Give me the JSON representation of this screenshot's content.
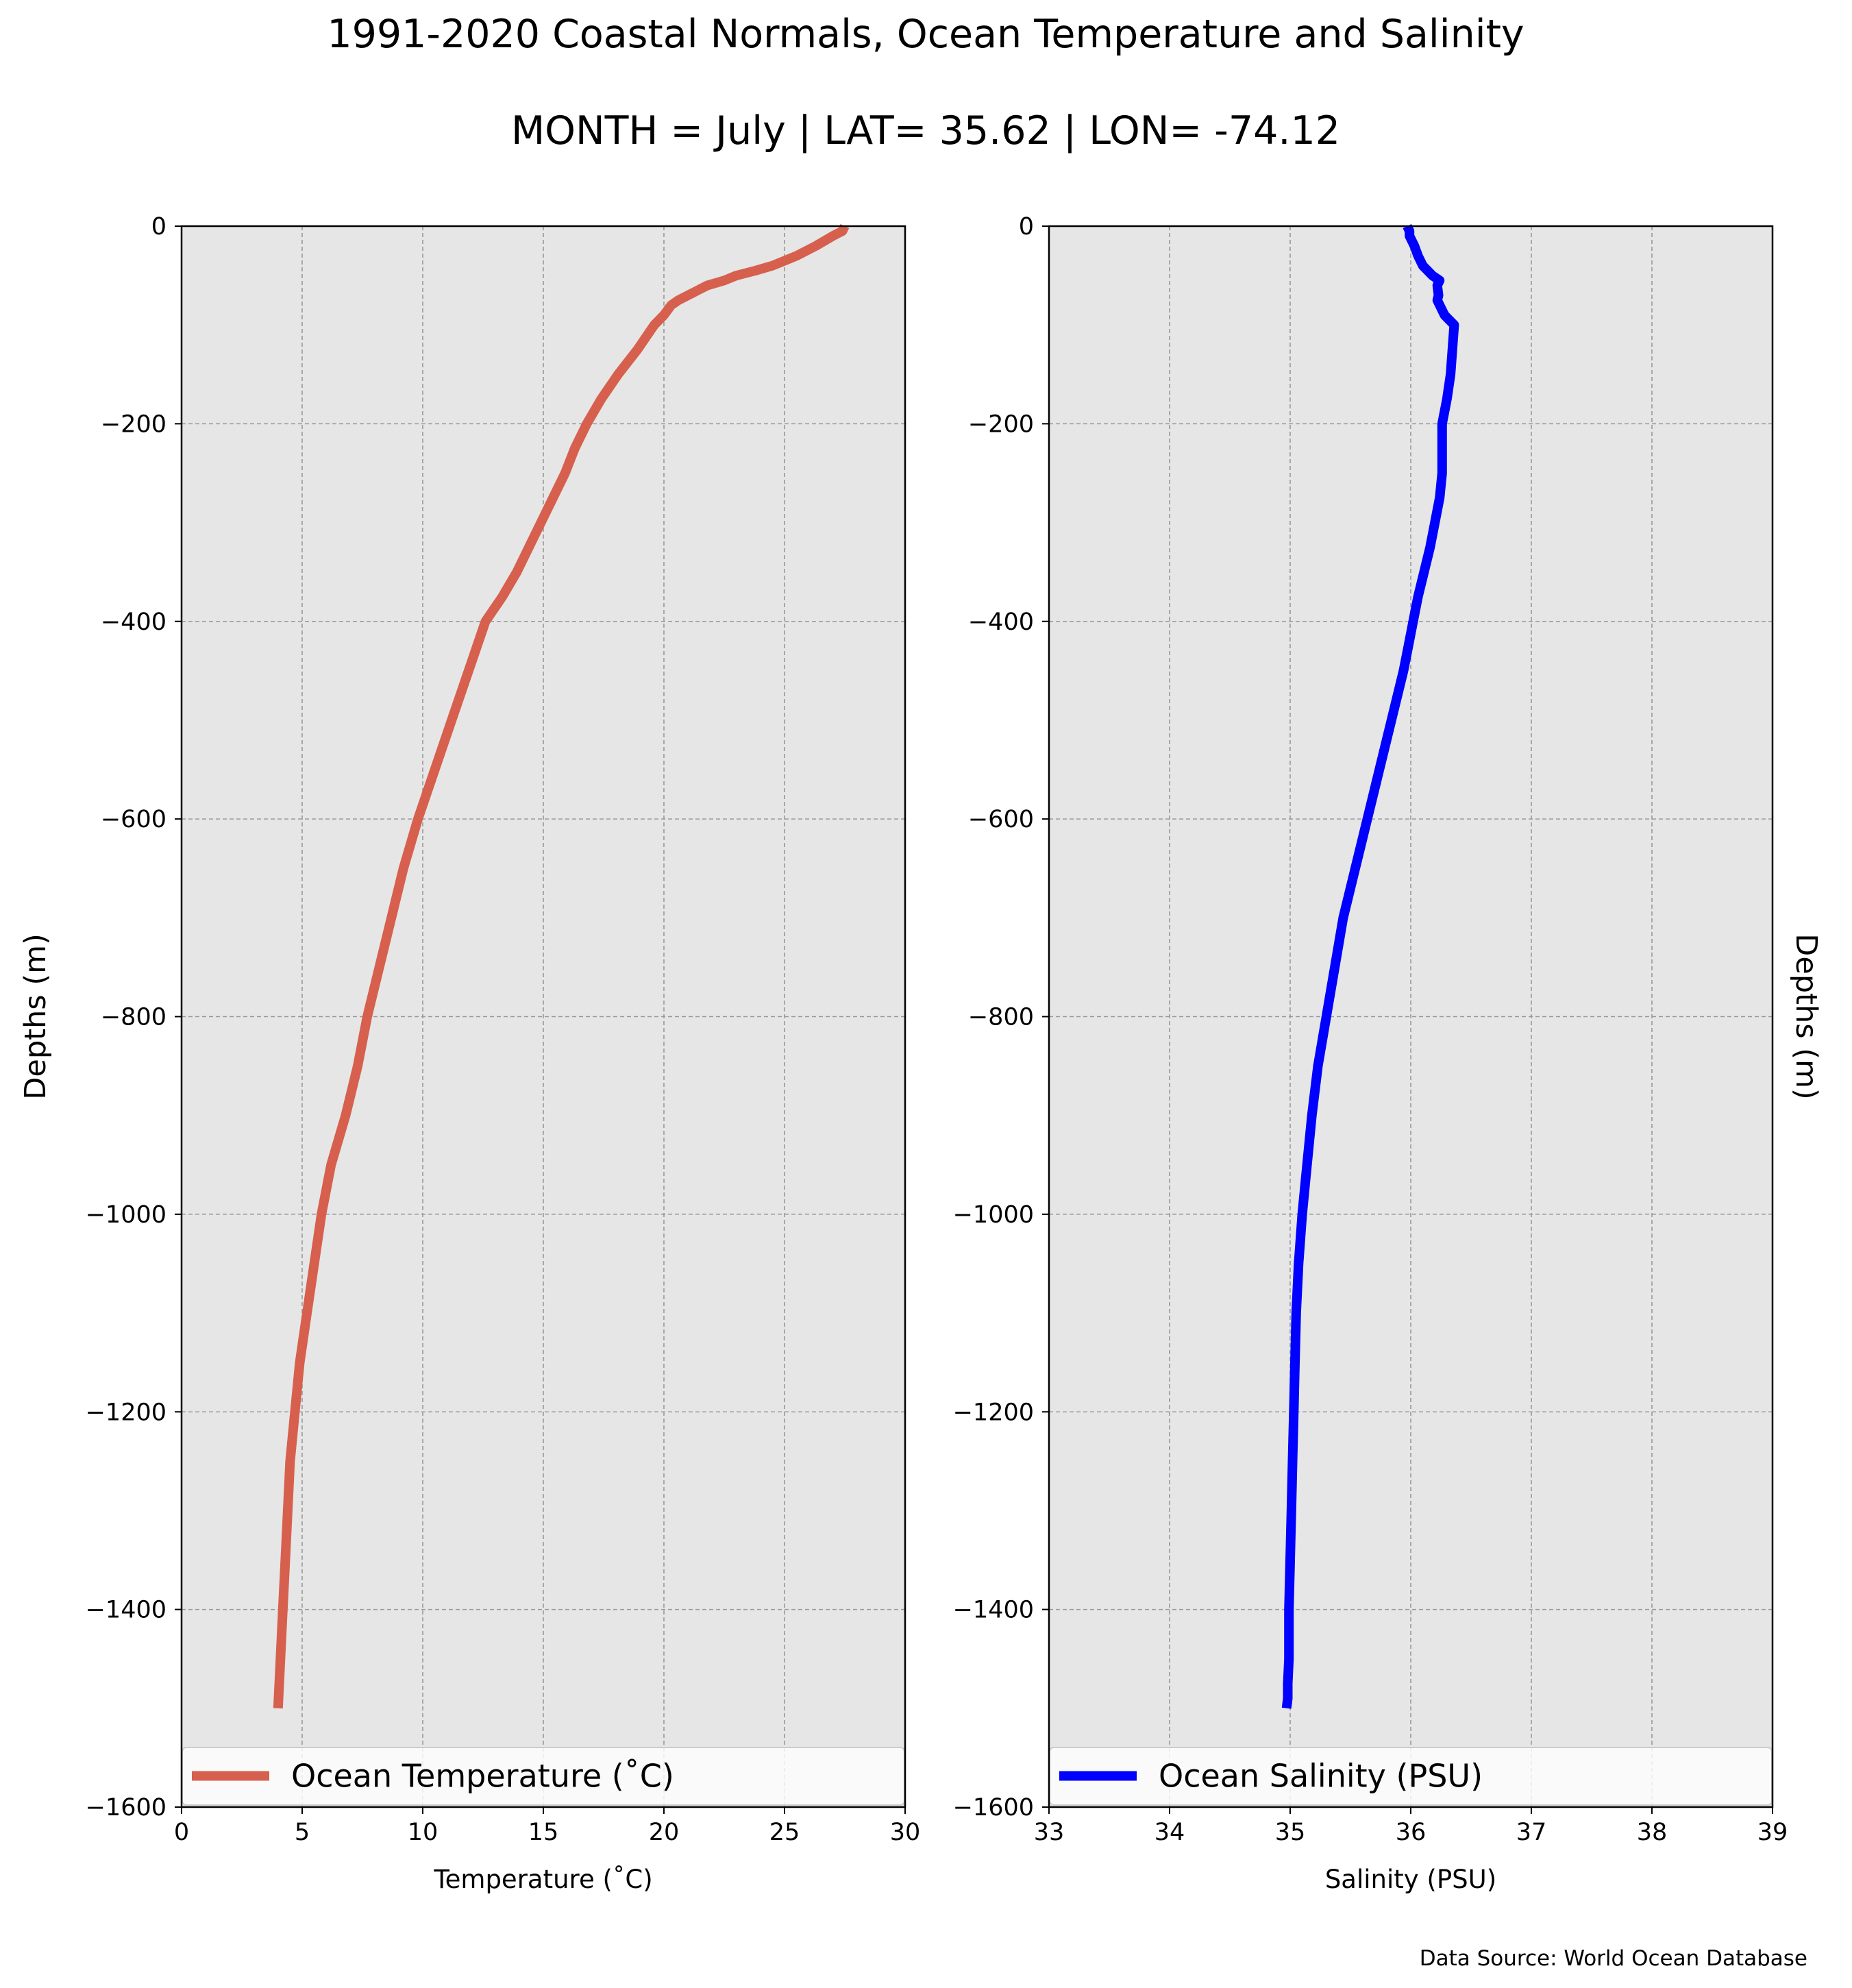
{
  "figure": {
    "title": "1991-2020 Coastal Normals, Ocean Temperature and Salinity",
    "subtitle": "MONTH = July | LAT= 35.62 | LON= -74.12",
    "source": "Data Source: World Ocean Database"
  },
  "colors": {
    "plot_background": "#e6e6e6",
    "grid": "#999999",
    "temperature_line": "#d6604d",
    "salinity_line": "#0000ff"
  },
  "chart_data": [
    {
      "type": "line",
      "xlabel": "Temperature ($^\\circ$C)",
      "xlabel_display": "Temperature (˚C)",
      "ylabel": "Depths (m)",
      "ylabel_position": "left",
      "xlim": [
        0,
        30
      ],
      "ylim": [
        -1600,
        0
      ],
      "xticks": [
        0,
        5,
        10,
        15,
        20,
        25,
        30
      ],
      "yticks": [
        0,
        -200,
        -400,
        -600,
        -800,
        -1000,
        -1200,
        -1400,
        -1600
      ],
      "xtick_labels": [
        "0",
        "5",
        "10",
        "15",
        "20",
        "25",
        "30"
      ],
      "ytick_labels": [
        "0",
        "−200",
        "−400",
        "−600",
        "−800",
        "−1000",
        "−1200",
        "−1400",
        "−1600"
      ],
      "grid": true,
      "legend": "bottom",
      "series": [
        {
          "name": "Ocean Temperature (˚C)",
          "color": "#d6604d",
          "x": [
            27.5,
            27.4,
            27.0,
            26.3,
            25.5,
            24.5,
            23.8,
            23.0,
            22.5,
            21.8,
            21.4,
            21.0,
            20.6,
            20.3,
            20.0,
            19.6,
            18.9,
            18.1,
            17.4,
            16.8,
            16.3,
            15.9,
            15.4,
            14.9,
            14.4,
            13.9,
            13.3,
            12.6,
            11.9,
            11.2,
            10.5,
            9.8,
            9.2,
            8.7,
            8.2,
            7.7,
            7.3,
            6.8,
            6.2,
            5.8,
            5.5,
            5.2,
            4.9,
            4.7,
            4.5,
            4.4,
            4.3,
            4.2,
            4.1,
            4.0
          ],
          "y": [
            0,
            -5,
            -10,
            -20,
            -30,
            -40,
            -45,
            -50,
            -55,
            -60,
            -65,
            -70,
            -75,
            -80,
            -90,
            -100,
            -125,
            -150,
            -175,
            -200,
            -225,
            -250,
            -275,
            -300,
            -325,
            -350,
            -375,
            -400,
            -450,
            -500,
            -550,
            -600,
            -650,
            -700,
            -750,
            -800,
            -850,
            -900,
            -950,
            -1000,
            -1050,
            -1100,
            -1150,
            -1200,
            -1250,
            -1300,
            -1350,
            -1400,
            -1450,
            -1500
          ]
        }
      ]
    },
    {
      "type": "line",
      "xlabel": "Salinity (PSU)",
      "ylabel": "Depths (m)",
      "ylabel_position": "right",
      "xlim": [
        33,
        39
      ],
      "ylim": [
        -1600,
        0
      ],
      "xticks": [
        33,
        34,
        35,
        36,
        37,
        38,
        39
      ],
      "yticks": [
        0,
        -200,
        -400,
        -600,
        -800,
        -1000,
        -1200,
        -1400,
        -1600
      ],
      "xtick_labels": [
        "33",
        "34",
        "35",
        "36",
        "37",
        "38",
        "39"
      ],
      "ytick_labels": [
        "0",
        "−200",
        "−400",
        "−600",
        "−800",
        "−1000",
        "−1200",
        "−1400",
        "−1600"
      ],
      "grid": true,
      "legend": "bottom",
      "series": [
        {
          "name": "Ocean Salinity (PSU)",
          "color": "#0000ff",
          "x": [
            35.97,
            35.99,
            35.99,
            36.03,
            36.06,
            36.1,
            36.18,
            36.24,
            36.22,
            36.23,
            36.22,
            36.28,
            36.36,
            36.33,
            36.3,
            36.26,
            36.26,
            36.26,
            36.24,
            36.2,
            36.16,
            36.11,
            36.06,
            36.02,
            35.98,
            35.94,
            35.89,
            35.84,
            35.79,
            35.74,
            35.69,
            35.64,
            35.59,
            35.54,
            35.49,
            35.44,
            35.37,
            35.3,
            35.23,
            35.18,
            35.14,
            35.1,
            35.07,
            35.05,
            35.04,
            35.03,
            35.02,
            35.01,
            35.0,
            34.99,
            34.99,
            34.98,
            34.98,
            34.97
          ],
          "y": [
            0,
            -5,
            -10,
            -20,
            -30,
            -40,
            -50,
            -55,
            -60,
            -70,
            -75,
            -90,
            -100,
            -150,
            -175,
            -200,
            -225,
            -250,
            -275,
            -300,
            -325,
            -350,
            -375,
            -400,
            -425,
            -450,
            -475,
            -500,
            -525,
            -550,
            -575,
            -600,
            -625,
            -650,
            -675,
            -700,
            -750,
            -800,
            -850,
            -900,
            -950,
            -1000,
            -1050,
            -1100,
            -1150,
            -1200,
            -1250,
            -1300,
            -1350,
            -1400,
            -1450,
            -1475,
            -1490,
            -1500
          ]
        }
      ]
    }
  ]
}
